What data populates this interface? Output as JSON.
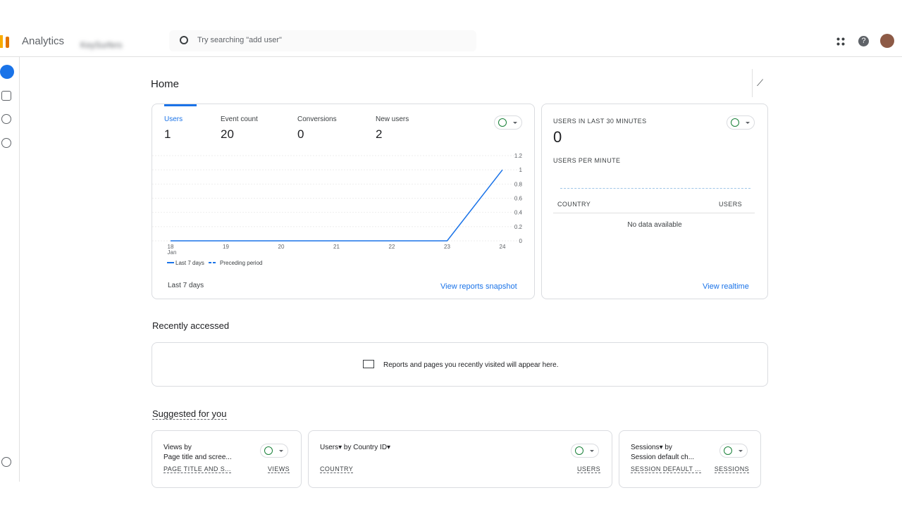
{
  "header": {
    "app_name": "Analytics",
    "account": "KeySurfers",
    "search_placeholder": "Try searching \"add user\""
  },
  "page_title": "Home",
  "summary_card": {
    "metrics": [
      {
        "label": "Users",
        "value": 1
      },
      {
        "label": "Event count",
        "value": 20
      },
      {
        "label": "Conversions",
        "value": 0
      },
      {
        "label": "New users",
        "value": 2
      }
    ],
    "chart": {
      "type": "line",
      "categories": [
        "18",
        "19",
        "20",
        "21",
        "22",
        "23",
        "24"
      ],
      "x_sublabel": "Jan",
      "series": [
        {
          "name": "Last 7 days",
          "color": "#1a73e8",
          "values": [
            0,
            0,
            0,
            0,
            0,
            0,
            1
          ]
        }
      ],
      "preceding_label": "Preceding period",
      "ylim": [
        0,
        1.2
      ],
      "yticks": [
        0,
        0.2,
        0.4,
        0.6,
        0.8,
        1,
        1.2
      ]
    },
    "date_range": "Last 7 days",
    "link": "View reports snapshot"
  },
  "realtime_card": {
    "title": "USERS IN LAST 30 MINUTES",
    "value": 0,
    "subtitle": "USERS PER MINUTE",
    "columns": [
      "COUNTRY",
      "USERS"
    ],
    "empty": "No data available",
    "link": "View realtime"
  },
  "recently_accessed": {
    "title": "Recently accessed",
    "message": "Reports and pages you recently visited will appear here."
  },
  "suggested": {
    "title": "Suggested for you",
    "cards": [
      {
        "title": "Views by",
        "subtitle": "Page title and scree...",
        "columns": [
          "PAGE TITLE AND S...",
          "VIEWS"
        ]
      },
      {
        "title": "Users▾ by Country ID▾",
        "subtitle": null,
        "columns": [
          "COUNTRY",
          "USERS"
        ]
      },
      {
        "title": "Sessions▾ by",
        "subtitle": "Session default ch...",
        "columns": [
          "SESSION DEFAULT ...",
          "SESSIONS"
        ]
      }
    ]
  }
}
